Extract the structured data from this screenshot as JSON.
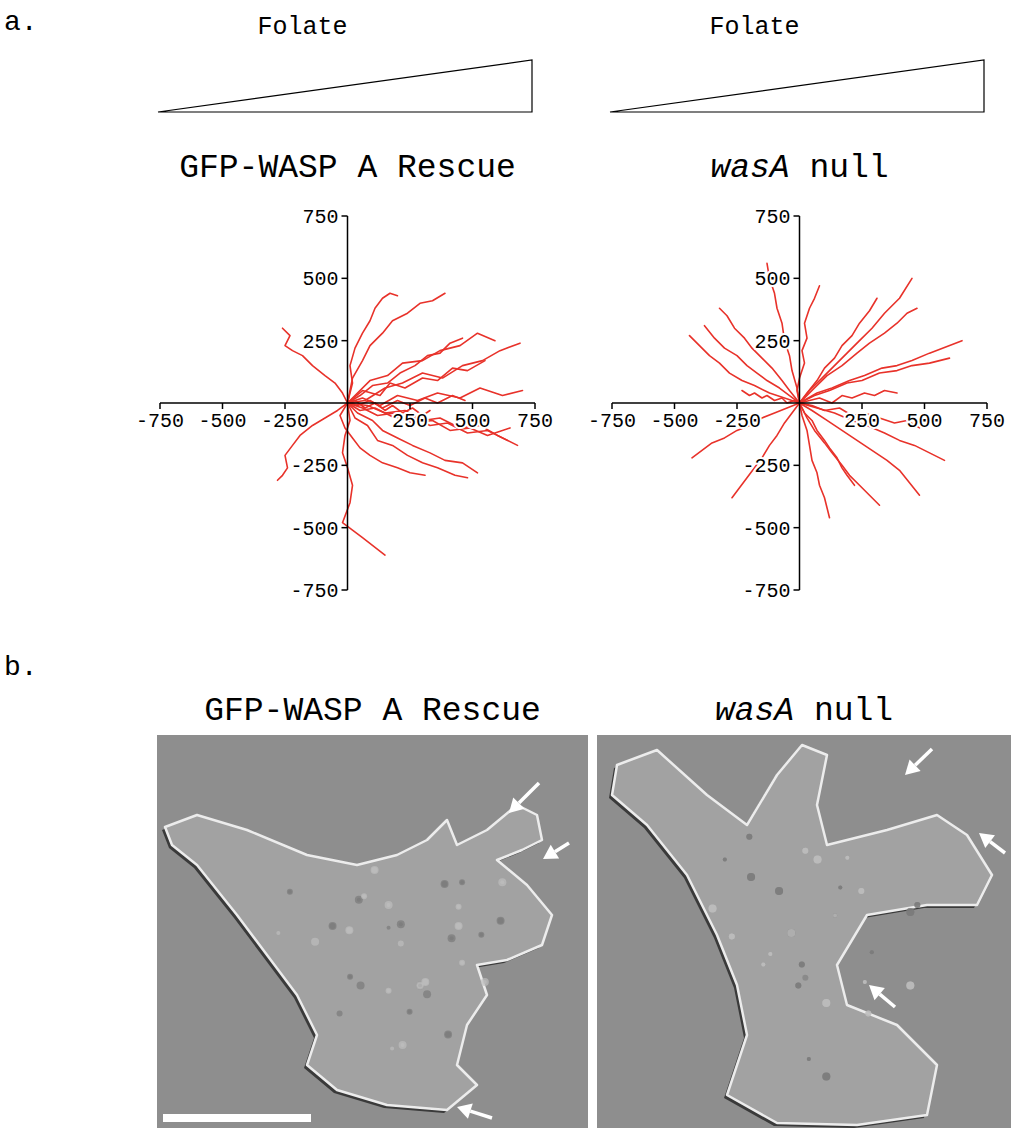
{
  "panel_labels": [
    "a.",
    "b."
  ],
  "images": [
    {
      "title": "GFP-WASP A Rescue"
    },
    {
      "title": "wasA null"
    }
  ],
  "chart_data": [
    {
      "type": "line",
      "title": "GFP-WASP A Rescue",
      "annotations": [
        "Folate"
      ],
      "color": "#e8322a",
      "xlim": [
        -750,
        750
      ],
      "ylim": [
        -750,
        750
      ],
      "xticks": [
        -750,
        -500,
        -250,
        250,
        500,
        750
      ],
      "yticks": [
        -750,
        -500,
        -250,
        250,
        500,
        750
      ],
      "series": [
        {
          "x": [
            0,
            60,
            130,
            200,
            280,
            360,
            450,
            530,
            620,
            700
          ],
          "values": [
            0,
            20,
            -10,
            30,
            10,
            40,
            20,
            60,
            30,
            50
          ]
        },
        {
          "x": [
            0,
            50,
            110,
            190,
            250,
            330,
            400,
            480,
            560,
            640
          ],
          "values": [
            0,
            -30,
            -20,
            -60,
            -50,
            -90,
            -80,
            -120,
            -110,
            -150
          ]
        },
        {
          "x": [
            0,
            40,
            90,
            160,
            220,
            300,
            370,
            450,
            520,
            590
          ],
          "values": [
            0,
            40,
            90,
            110,
            160,
            170,
            210,
            230,
            280,
            250
          ]
        },
        {
          "x": [
            0,
            30,
            80,
            120,
            180,
            240,
            300,
            360,
            430,
            480
          ],
          "values": [
            0,
            -60,
            -90,
            -150,
            -170,
            -210,
            -240,
            -260,
            -290,
            -300
          ]
        },
        {
          "x": [
            0,
            -20,
            -50,
            -90,
            -140,
            -180,
            -220,
            -250,
            -230,
            -260
          ],
          "values": [
            0,
            40,
            80,
            110,
            150,
            190,
            210,
            230,
            270,
            300
          ]
        },
        {
          "x": [
            0,
            20,
            10,
            30,
            60,
            90,
            110,
            140,
            170,
            200
          ],
          "values": [
            0,
            80,
            150,
            220,
            280,
            330,
            380,
            420,
            440,
            430
          ]
        },
        {
          "x": [
            0,
            10,
            -10,
            -20,
            0,
            20,
            10,
            -20,
            60,
            150
          ],
          "values": [
            0,
            -70,
            -130,
            -200,
            -260,
            -330,
            -400,
            -480,
            -540,
            -610
          ]
        },
        {
          "x": [
            0,
            70,
            150,
            220,
            300,
            380,
            460,
            540,
            610,
            690
          ],
          "values": [
            0,
            10,
            60,
            80,
            120,
            100,
            150,
            170,
            210,
            240
          ]
        },
        {
          "x": [
            0,
            60,
            120,
            190,
            260,
            340,
            410,
            490,
            560,
            650
          ],
          "values": [
            0,
            -20,
            -50,
            -40,
            -80,
            -70,
            -110,
            -100,
            -130,
            -100
          ]
        },
        {
          "x": [
            0,
            -40,
            -90,
            -140,
            -190,
            -220,
            -250,
            -240,
            -260,
            -280
          ],
          "values": [
            0,
            -30,
            -60,
            -90,
            -130,
            -170,
            -210,
            -260,
            -290,
            -310
          ]
        },
        {
          "x": [
            0,
            50,
            100,
            160,
            210,
            270,
            320,
            370,
            410,
            460
          ],
          "values": [
            0,
            30,
            70,
            80,
            120,
            150,
            190,
            200,
            240,
            260
          ]
        },
        {
          "x": [
            0,
            40,
            100,
            140,
            200,
            260,
            330,
            390,
            460,
            520
          ],
          "values": [
            0,
            -40,
            -70,
            -110,
            -140,
            -170,
            -200,
            -230,
            -240,
            -280
          ]
        },
        {
          "x": [
            0,
            30,
            70,
            110,
            150,
            180,
            220,
            260,
            300,
            330
          ],
          "values": [
            0,
            10,
            -20,
            0,
            -30,
            -10,
            -40,
            -20,
            -50,
            -30
          ]
        },
        {
          "x": [
            0,
            60,
            130,
            170,
            230,
            300,
            360,
            420,
            480,
            550
          ],
          "values": [
            0,
            50,
            30,
            80,
            60,
            100,
            90,
            140,
            130,
            170
          ]
        },
        {
          "x": [
            0,
            20,
            60,
            90,
            140,
            180,
            240,
            290,
            340,
            390
          ],
          "values": [
            0,
            100,
            170,
            230,
            280,
            330,
            360,
            400,
            410,
            440
          ]
        },
        {
          "x": [
            0,
            80,
            150,
            230,
            300,
            370,
            450,
            530,
            600,
            680
          ],
          "values": [
            0,
            -10,
            -40,
            -30,
            -70,
            -60,
            -100,
            -90,
            -130,
            -170
          ]
        },
        {
          "x": [
            0,
            -30,
            -10,
            20,
            50,
            90,
            140,
            200,
            250,
            310
          ],
          "values": [
            0,
            -50,
            -100,
            -140,
            -180,
            -210,
            -240,
            -260,
            -280,
            -290
          ]
        },
        {
          "x": [
            0,
            40,
            90,
            140,
            200,
            250,
            310,
            360,
            420,
            470
          ],
          "values": [
            0,
            -10,
            10,
            -20,
            10,
            -10,
            20,
            0,
            30,
            10
          ]
        }
      ]
    },
    {
      "type": "line",
      "title": "wasA null",
      "annotations": [
        "Folate"
      ],
      "color": "#e8322a",
      "xlim": [
        -750,
        750
      ],
      "ylim": [
        -750,
        750
      ],
      "xticks": [
        -750,
        -500,
        -250,
        250,
        500,
        750
      ],
      "yticks": [
        -750,
        -500,
        -250,
        250,
        500,
        750
      ],
      "series": [
        {
          "x": [
            0,
            -40,
            -80,
            -130,
            -170,
            -210,
            -250,
            -300,
            -340,
            -380
          ],
          "values": [
            0,
            30,
            60,
            90,
            120,
            150,
            190,
            220,
            260,
            310
          ]
        },
        {
          "x": [
            0,
            -10,
            -30,
            -40,
            -60,
            -70,
            -90,
            -100,
            -120,
            -130
          ],
          "values": [
            0,
            60,
            130,
            190,
            250,
            320,
            380,
            440,
            500,
            560
          ]
        },
        {
          "x": [
            0,
            40,
            90,
            140,
            190,
            240,
            290,
            340,
            400,
            450
          ],
          "values": [
            0,
            50,
            100,
            150,
            200,
            250,
            300,
            360,
            420,
            500
          ]
        },
        {
          "x": [
            0,
            60,
            120,
            190,
            250,
            320,
            390,
            450,
            520,
            600
          ],
          "values": [
            0,
            30,
            50,
            80,
            90,
            120,
            130,
            150,
            160,
            180
          ]
        },
        {
          "x": [
            0,
            50,
            110,
            170,
            230,
            290,
            350,
            400,
            440,
            480
          ],
          "values": [
            0,
            -30,
            -70,
            -110,
            -150,
            -190,
            -230,
            -270,
            -320,
            -370
          ]
        },
        {
          "x": [
            0,
            10,
            30,
            40,
            50,
            70,
            80,
            100,
            110,
            120
          ],
          "values": [
            0,
            -50,
            -110,
            -170,
            -230,
            -280,
            -330,
            -380,
            -420,
            -460
          ]
        },
        {
          "x": [
            0,
            -50,
            -100,
            -150,
            -200,
            -250,
            -300,
            -350,
            -390,
            -430
          ],
          "values": [
            0,
            -20,
            -40,
            -60,
            -90,
            -110,
            -140,
            -160,
            -190,
            -220
          ]
        },
        {
          "x": [
            0,
            -60,
            -120,
            -180,
            -230,
            -280,
            -320,
            -360,
            -400,
            -440
          ],
          "values": [
            0,
            20,
            40,
            70,
            90,
            120,
            160,
            190,
            230,
            270
          ]
        },
        {
          "x": [
            0,
            30,
            70,
            100,
            140,
            170,
            210,
            240,
            280,
            310
          ],
          "values": [
            0,
            40,
            90,
            140,
            180,
            230,
            270,
            320,
            370,
            420
          ]
        },
        {
          "x": [
            0,
            70,
            140,
            210,
            270,
            340,
            400,
            460,
            520,
            580
          ],
          "values": [
            0,
            -20,
            -40,
            -70,
            -90,
            -120,
            -150,
            -170,
            -200,
            -230
          ]
        },
        {
          "x": [
            0,
            -30,
            -60,
            -90,
            -120,
            -150,
            -180,
            -210,
            -240,
            -270
          ],
          "values": [
            0,
            -40,
            -80,
            -130,
            -170,
            -220,
            -260,
            -300,
            -340,
            -380
          ]
        },
        {
          "x": [
            0,
            40,
            80,
            130,
            170,
            210,
            260,
            300,
            340,
            390
          ],
          "values": [
            0,
            10,
            20,
            0,
            30,
            20,
            40,
            30,
            50,
            40
          ]
        },
        {
          "x": [
            0,
            -20,
            -50,
            -70,
            -100,
            -130,
            -150,
            -180,
            -200,
            -230
          ],
          "values": [
            0,
            10,
            0,
            20,
            10,
            30,
            20,
            40,
            30,
            50
          ]
        },
        {
          "x": [
            0,
            20,
            50,
            70,
            100,
            120,
            150,
            170,
            190,
            220
          ],
          "values": [
            0,
            -40,
            -70,
            -110,
            -150,
            -180,
            -220,
            -260,
            -290,
            -330
          ]
        },
        {
          "x": [
            0,
            60,
            110,
            170,
            230,
            280,
            340,
            390,
            430,
            470
          ],
          "values": [
            0,
            60,
            110,
            150,
            200,
            240,
            280,
            320,
            360,
            380
          ]
        },
        {
          "x": [
            0,
            -10,
            0,
            20,
            10,
            30,
            20,
            40,
            60,
            80
          ],
          "values": [
            0,
            50,
            100,
            160,
            210,
            260,
            320,
            380,
            420,
            470
          ]
        },
        {
          "x": [
            0,
            50,
            100,
            160,
            210,
            260,
            320,
            380,
            430,
            480
          ],
          "values": [
            0,
            -10,
            -30,
            -20,
            -50,
            -40,
            -60,
            -80,
            -70,
            -100
          ]
        },
        {
          "x": [
            0,
            -40,
            -70,
            -110,
            -150,
            -190,
            -220,
            -260,
            -290,
            -320
          ],
          "values": [
            0,
            50,
            90,
            140,
            180,
            220,
            260,
            300,
            350,
            380
          ]
        },
        {
          "x": [
            0,
            30,
            60,
            100,
            130,
            170,
            200,
            240,
            280,
            320
          ],
          "values": [
            0,
            -60,
            -110,
            -160,
            -200,
            -250,
            -290,
            -330,
            -370,
            -410
          ]
        },
        {
          "x": [
            0,
            70,
            130,
            200,
            260,
            330,
            390,
            450,
            520,
            650
          ],
          "values": [
            0,
            40,
            60,
            90,
            110,
            140,
            150,
            170,
            200,
            250
          ]
        }
      ]
    }
  ]
}
